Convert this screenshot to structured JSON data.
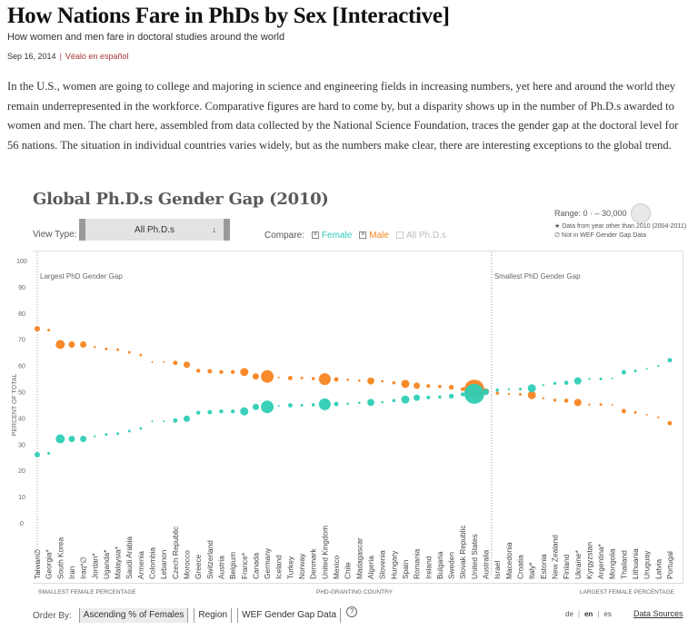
{
  "article": {
    "headline": "How Nations Fare in PhDs by Sex [Interactive]",
    "subheadline": "How women and men fare in doctoral studies around the world",
    "date": "Sep 16, 2014",
    "separator": "|",
    "spanish_link": "Véalo en español",
    "intro": "In the U.S., women are going to college and majoring in science and engineering fields in increasing numbers, yet here and around the world they remain underrepresented in the workforce. Comparative figures are hard to come by, but a disparity shows up in the number of Ph.D.s awarded to women and men. The chart here, assembled from data collected by the National Science Foundation, traces the gender gap at the doctoral level for 56 nations. The situation in individual countries varies widely, but as the numbers make clear, there are interesting exceptions to the global trend."
  },
  "controls": {
    "view_type_label": "View Type:",
    "view_type_value": "All Ph.D.s",
    "compare_label": "Compare:",
    "compare_options": [
      {
        "label": "Female",
        "checked": true,
        "color": "#2ecdb5"
      },
      {
        "label": "Male",
        "checked": true,
        "color": "#f7841f"
      },
      {
        "label": "All Ph.D.s",
        "checked": false,
        "color": "#bbbbbb"
      }
    ],
    "order_by_label": "Order By:",
    "order_by_options": [
      {
        "label": "Ascending % of Females",
        "active": true
      },
      {
        "label": "Region",
        "active": false
      },
      {
        "label": "WEF Gender Gap Data",
        "active": false
      }
    ],
    "help": "?",
    "languages": [
      "de",
      "en",
      "es"
    ],
    "active_language": "en",
    "data_sources": "Data Sources"
  },
  "legend": {
    "range_label": "Range: 0 · – 30,000",
    "note_star": "★ Data from year other than 2010 (2004-2011)",
    "note_null": "∅ Not in WEF Gender Gap Data"
  },
  "chart_data": {
    "type": "scatter",
    "title": "Global Ph.D.s Gender Gap (2010)",
    "ylabel": "PERCENT OF TOTAL",
    "xlabel": "PHD-GRANTING COUNTRY",
    "x_left_label": "SMALLEST FEMALE PERCENTAGE",
    "x_right_label": "LARGEST FEMALE PERCENTAGE",
    "ylim": [
      0,
      100
    ],
    "yticks": [
      0,
      10,
      20,
      30,
      40,
      50,
      60,
      70,
      80,
      90,
      100
    ],
    "bubble_size_range": [
      0,
      30000
    ],
    "colors": {
      "female": "#2ecdb5",
      "male": "#f7841f"
    },
    "annotations": [
      {
        "label": "Largest PhD Gender Gap",
        "country": "Taiwan∅"
      },
      {
        "label": "Smallest PhD Gender Gap",
        "country": "Australia"
      }
    ],
    "countries": [
      {
        "name": "Taiwan∅",
        "female": 26,
        "male": 74,
        "total": 2200
      },
      {
        "name": "Georgia*",
        "female": 26.5,
        "male": 73.5,
        "total": 550
      },
      {
        "name": "South Korea",
        "female": 32,
        "male": 68,
        "total": 6200
      },
      {
        "name": "Iran",
        "female": 32,
        "male": 68,
        "total": 3000
      },
      {
        "name": "Iraq*∅",
        "female": 32,
        "male": 68,
        "total": 3000
      },
      {
        "name": "Jordan*",
        "female": 33,
        "male": 67,
        "total": 350
      },
      {
        "name": "Uganda*",
        "female": 33.7,
        "male": 66.3,
        "total": 550
      },
      {
        "name": "Malaysia*",
        "female": 34,
        "male": 66,
        "total": 550
      },
      {
        "name": "Saudi Arabia",
        "female": 35,
        "male": 65,
        "total": 550
      },
      {
        "name": "Armenia",
        "female": 36,
        "male": 64,
        "total": 550
      },
      {
        "name": "Colombia",
        "female": 38.7,
        "male": 61.3,
        "total": 250
      },
      {
        "name": "Lebanon",
        "female": 38.7,
        "male": 61.3,
        "total": 250
      },
      {
        "name": "Czech Republic",
        "female": 39,
        "male": 61,
        "total": 1500
      },
      {
        "name": "Morocco",
        "female": 39.7,
        "male": 60.3,
        "total": 3000
      },
      {
        "name": "Greece",
        "female": 42,
        "male": 58,
        "total": 1200
      },
      {
        "name": "Switzerland",
        "female": 42.2,
        "male": 57.8,
        "total": 1500
      },
      {
        "name": "Austria",
        "female": 42.5,
        "male": 57.5,
        "total": 1200
      },
      {
        "name": "Belgium",
        "female": 42.5,
        "male": 57.5,
        "total": 1200
      },
      {
        "name": "France*",
        "female": 42.5,
        "male": 57.5,
        "total": 5000
      },
      {
        "name": "Canada",
        "female": 44.2,
        "male": 55.8,
        "total": 3000
      },
      {
        "name": "Germany",
        "female": 44.2,
        "male": 55.8,
        "total": 12000
      },
      {
        "name": "Iceland",
        "female": 44.6,
        "male": 55.4,
        "total": 250
      },
      {
        "name": "Turkey",
        "female": 44.8,
        "male": 55.2,
        "total": 1500
      },
      {
        "name": "Norway",
        "female": 44.8,
        "male": 55.2,
        "total": 550
      },
      {
        "name": "Denmark",
        "female": 45,
        "male": 55,
        "total": 800
      },
      {
        "name": "United Kingdom",
        "female": 45.2,
        "male": 54.8,
        "total": 10500
      },
      {
        "name": "Mexico",
        "female": 45.3,
        "male": 54.7,
        "total": 1500
      },
      {
        "name": "Chile",
        "female": 45.4,
        "male": 54.6,
        "total": 420
      },
      {
        "name": "Madagascar",
        "female": 45.8,
        "male": 54.2,
        "total": 420
      },
      {
        "name": "Algeria",
        "female": 45.9,
        "male": 54.1,
        "total": 3800
      },
      {
        "name": "Slovenia",
        "female": 46,
        "male": 54,
        "total": 420
      },
      {
        "name": "Hungary",
        "female": 46.6,
        "male": 53.4,
        "total": 800
      },
      {
        "name": "Spain",
        "female": 47,
        "male": 53,
        "total": 5000
      },
      {
        "name": "Romania",
        "female": 47.7,
        "male": 52.3,
        "total": 3000
      },
      {
        "name": "Ireland",
        "female": 47.8,
        "male": 52.2,
        "total": 1000
      },
      {
        "name": "Bulgaria",
        "female": 48,
        "male": 52,
        "total": 800
      },
      {
        "name": "Sweden",
        "female": 48.3,
        "male": 51.7,
        "total": 1800
      },
      {
        "name": "Slovak Republic",
        "female": 49,
        "male": 51,
        "total": 1300
      },
      {
        "name": "United States",
        "female": 49.2,
        "male": 50.8,
        "total": 30000
      },
      {
        "name": "Australia",
        "female": 49.9,
        "male": 50.1,
        "total": 3000
      },
      {
        "name": "Israel",
        "female": 50.6,
        "male": 49.4,
        "total": 800
      },
      {
        "name": "Macedonia",
        "female": 50.9,
        "male": 49.1,
        "total": 350
      },
      {
        "name": "Croatia",
        "female": 51,
        "male": 49,
        "total": 550
      },
      {
        "name": "Italy*",
        "female": 51.3,
        "male": 48.7,
        "total": 5000
      },
      {
        "name": "Estonia",
        "female": 52.5,
        "male": 47.5,
        "total": 350
      },
      {
        "name": "New Zealand",
        "female": 53.2,
        "male": 46.8,
        "total": 700
      },
      {
        "name": "Finland",
        "female": 53.4,
        "male": 46.6,
        "total": 1300
      },
      {
        "name": "Ukraine*",
        "female": 54.1,
        "male": 45.9,
        "total": 4000
      },
      {
        "name": "Kyrgyzstan",
        "female": 54.9,
        "male": 45.1,
        "total": 350
      },
      {
        "name": "Argentina*",
        "female": 54.9,
        "male": 45.1,
        "total": 550
      },
      {
        "name": "Mongolia",
        "female": 55,
        "male": 45,
        "total": 250
      },
      {
        "name": "Thailand",
        "female": 57.4,
        "male": 42.6,
        "total": 1500
      },
      {
        "name": "Lithuania",
        "female": 57.9,
        "male": 42.1,
        "total": 550
      },
      {
        "name": "Uruguay",
        "female": 58.8,
        "male": 41.2,
        "total": 250
      },
      {
        "name": "Latvia",
        "female": 59.8,
        "male": 40.2,
        "total": 350
      },
      {
        "name": "Portugal",
        "female": 62,
        "male": 38,
        "total": 1500
      }
    ]
  }
}
